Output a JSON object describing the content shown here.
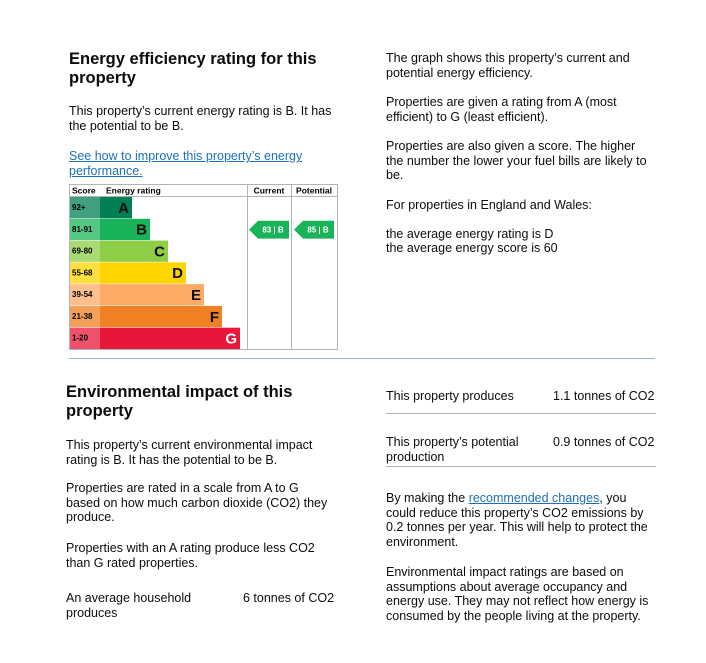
{
  "energy": {
    "title": "Energy efficiency rating for this property",
    "summary": "This property’s current energy rating is B. It has the potential to be B.",
    "link": "See how to improve this property’s energy performance.",
    "chart": {
      "headers": {
        "score": "Score",
        "rating": "Energy rating",
        "current": "Current",
        "potential": "Potential"
      },
      "bands": [
        {
          "score": "92+",
          "letter": "A",
          "color": "#008054"
        },
        {
          "score": "81-91",
          "letter": "B",
          "color": "#19b459"
        },
        {
          "score": "69-80",
          "letter": "C",
          "color": "#8dce46"
        },
        {
          "score": "55-68",
          "letter": "D",
          "color": "#ffd500"
        },
        {
          "score": "39-54",
          "letter": "E",
          "color": "#fcaa65"
        },
        {
          "score": "21-38",
          "letter": "F",
          "color": "#ef8023"
        },
        {
          "score": "1-20",
          "letter": "G",
          "color": "#e9153b"
        }
      ],
      "current": "83 | B",
      "potential": "85 | B"
    }
  },
  "about": {
    "paragraphs": [
      "The graph shows this property’s current and potential energy efficiency.",
      "Properties are given a rating from A (most efficient) to G (least efficient).",
      "Properties are also given a score. The higher the number the lower your fuel bills are likely to be.",
      "For properties in England and Wales:"
    ],
    "average_rating": "the average energy rating is D",
    "average_score": "the average energy score is 60"
  },
  "environment": {
    "title": "Environmental impact of this property",
    "paragraphs": [
      "This property’s current environmental impact rating is B. It has the potential to be B.",
      "Properties are rated in a scale from A to G based on how much carbon dioxide (CO2) they produce.",
      "Properties with an A rating produce less CO2 than G rated properties."
    ],
    "average": {
      "label": "An average household produces",
      "value": "6 tonnes of CO2"
    },
    "rows": [
      {
        "label": "This property produces",
        "value": "1.1 tonnes of CO2"
      },
      {
        "label": "This property’s potential production",
        "value": "0.9 tonnes of CO2"
      }
    ],
    "reduce": {
      "before": "By making the ",
      "link": "recommended changes",
      "after": ", you could reduce this property’s CO2 emissions by 0.2 tonnes per year. This will help to protect the environment."
    },
    "note": "Environmental impact ratings are based on assumptions about average occupancy and energy use. They may not reflect how energy is consumed by the people living at the property."
  }
}
